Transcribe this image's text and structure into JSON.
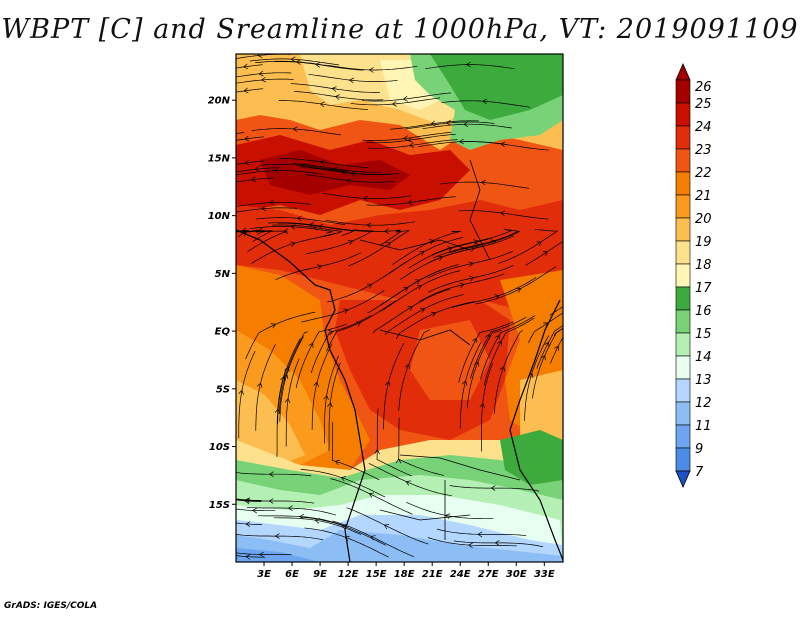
{
  "title": "WBPT [C] and Sreamline at 1000hPa, VT: 2019091109",
  "credit": "GrADS: IGES/COLA",
  "map": {
    "lon_range_deg_e": [
      0,
      35
    ],
    "lat_range_deg": [
      -20,
      24
    ],
    "lat_ticks": [
      {
        "value": 20,
        "label": "20N"
      },
      {
        "value": 15,
        "label": "15N"
      },
      {
        "value": 10,
        "label": "10N"
      },
      {
        "value": 5,
        "label": "5N"
      },
      {
        "value": 0,
        "label": "EQ"
      },
      {
        "value": -5,
        "label": "5S"
      },
      {
        "value": -10,
        "label": "10S"
      },
      {
        "value": -15,
        "label": "15S"
      }
    ],
    "lon_ticks": [
      {
        "value": 3,
        "label": "3E"
      },
      {
        "value": 6,
        "label": "6E"
      },
      {
        "value": 9,
        "label": "9E"
      },
      {
        "value": 12,
        "label": "12E"
      },
      {
        "value": 15,
        "label": "15E"
      },
      {
        "value": 18,
        "label": "18E"
      },
      {
        "value": 21,
        "label": "21E"
      },
      {
        "value": 24,
        "label": "24E"
      },
      {
        "value": 27,
        "label": "27E"
      },
      {
        "value": 30,
        "label": "30E"
      },
      {
        "value": 33,
        "label": "33E"
      }
    ]
  },
  "colorbar": {
    "unit": "C",
    "levels": [
      {
        "label": "26",
        "color": "#a50000"
      },
      {
        "label": "25",
        "color": "#c80f00"
      },
      {
        "label": "24",
        "color": "#e12d0a"
      },
      {
        "label": "23",
        "color": "#f05514"
      },
      {
        "label": "22",
        "color": "#f57d00"
      },
      {
        "label": "21",
        "color": "#fa9b1e"
      },
      {
        "label": "20",
        "color": "#fcbe50"
      },
      {
        "label": "19",
        "color": "#fde18c"
      },
      {
        "label": "18",
        "color": "#fff5b4"
      },
      {
        "label": "17",
        "color": "#3caa3c"
      },
      {
        "label": "16",
        "color": "#78d278"
      },
      {
        "label": "15",
        "color": "#b4f0b4"
      },
      {
        "label": "14",
        "color": "#e6fff0"
      },
      {
        "label": "13",
        "color": "#b4d7ff"
      },
      {
        "label": "12",
        "color": "#8cbef5"
      },
      {
        "label": "11",
        "color": "#6ea5f0"
      },
      {
        "label": "9",
        "color": "#4b8ce6"
      },
      {
        "label": "7",
        "color": "#2d6edc"
      }
    ],
    "bottom_color": "#1e50c8"
  }
}
